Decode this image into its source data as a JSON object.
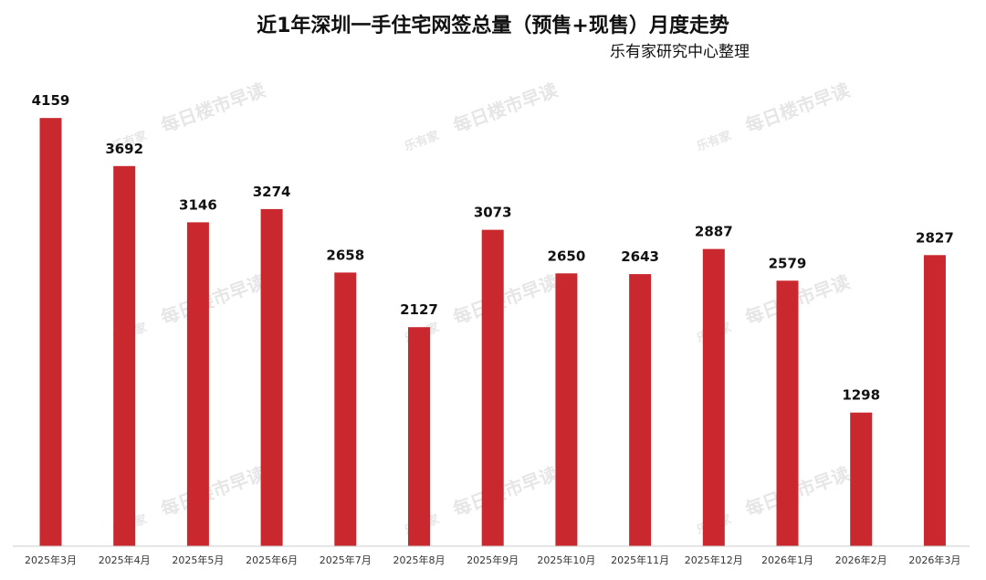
{
  "chart_data": {
    "type": "bar",
    "title": "近1年深圳一手住宅网签总量（预售+现售）月度走势",
    "subtitle": "乐有家研究中心整理",
    "categories": [
      "2025年3月",
      "2025年4月",
      "2025年5月",
      "2025年6月",
      "2025年7月",
      "2025年8月",
      "2025年9月",
      "2025年10月",
      "2025年11月",
      "2025年12月",
      "2026年1月",
      "2026年2月",
      "2026年3月"
    ],
    "values": [
      4159,
      3692,
      3146,
      3274,
      2658,
      2127,
      3073,
      2650,
      2643,
      2887,
      2579,
      1298,
      2827
    ],
    "ylim": [
      0,
      4400
    ],
    "grid": false,
    "legend": "none",
    "bar_color": "#c8282e"
  },
  "watermark": {
    "logo_text": "乐有家",
    "text": "每日楼市早读"
  }
}
